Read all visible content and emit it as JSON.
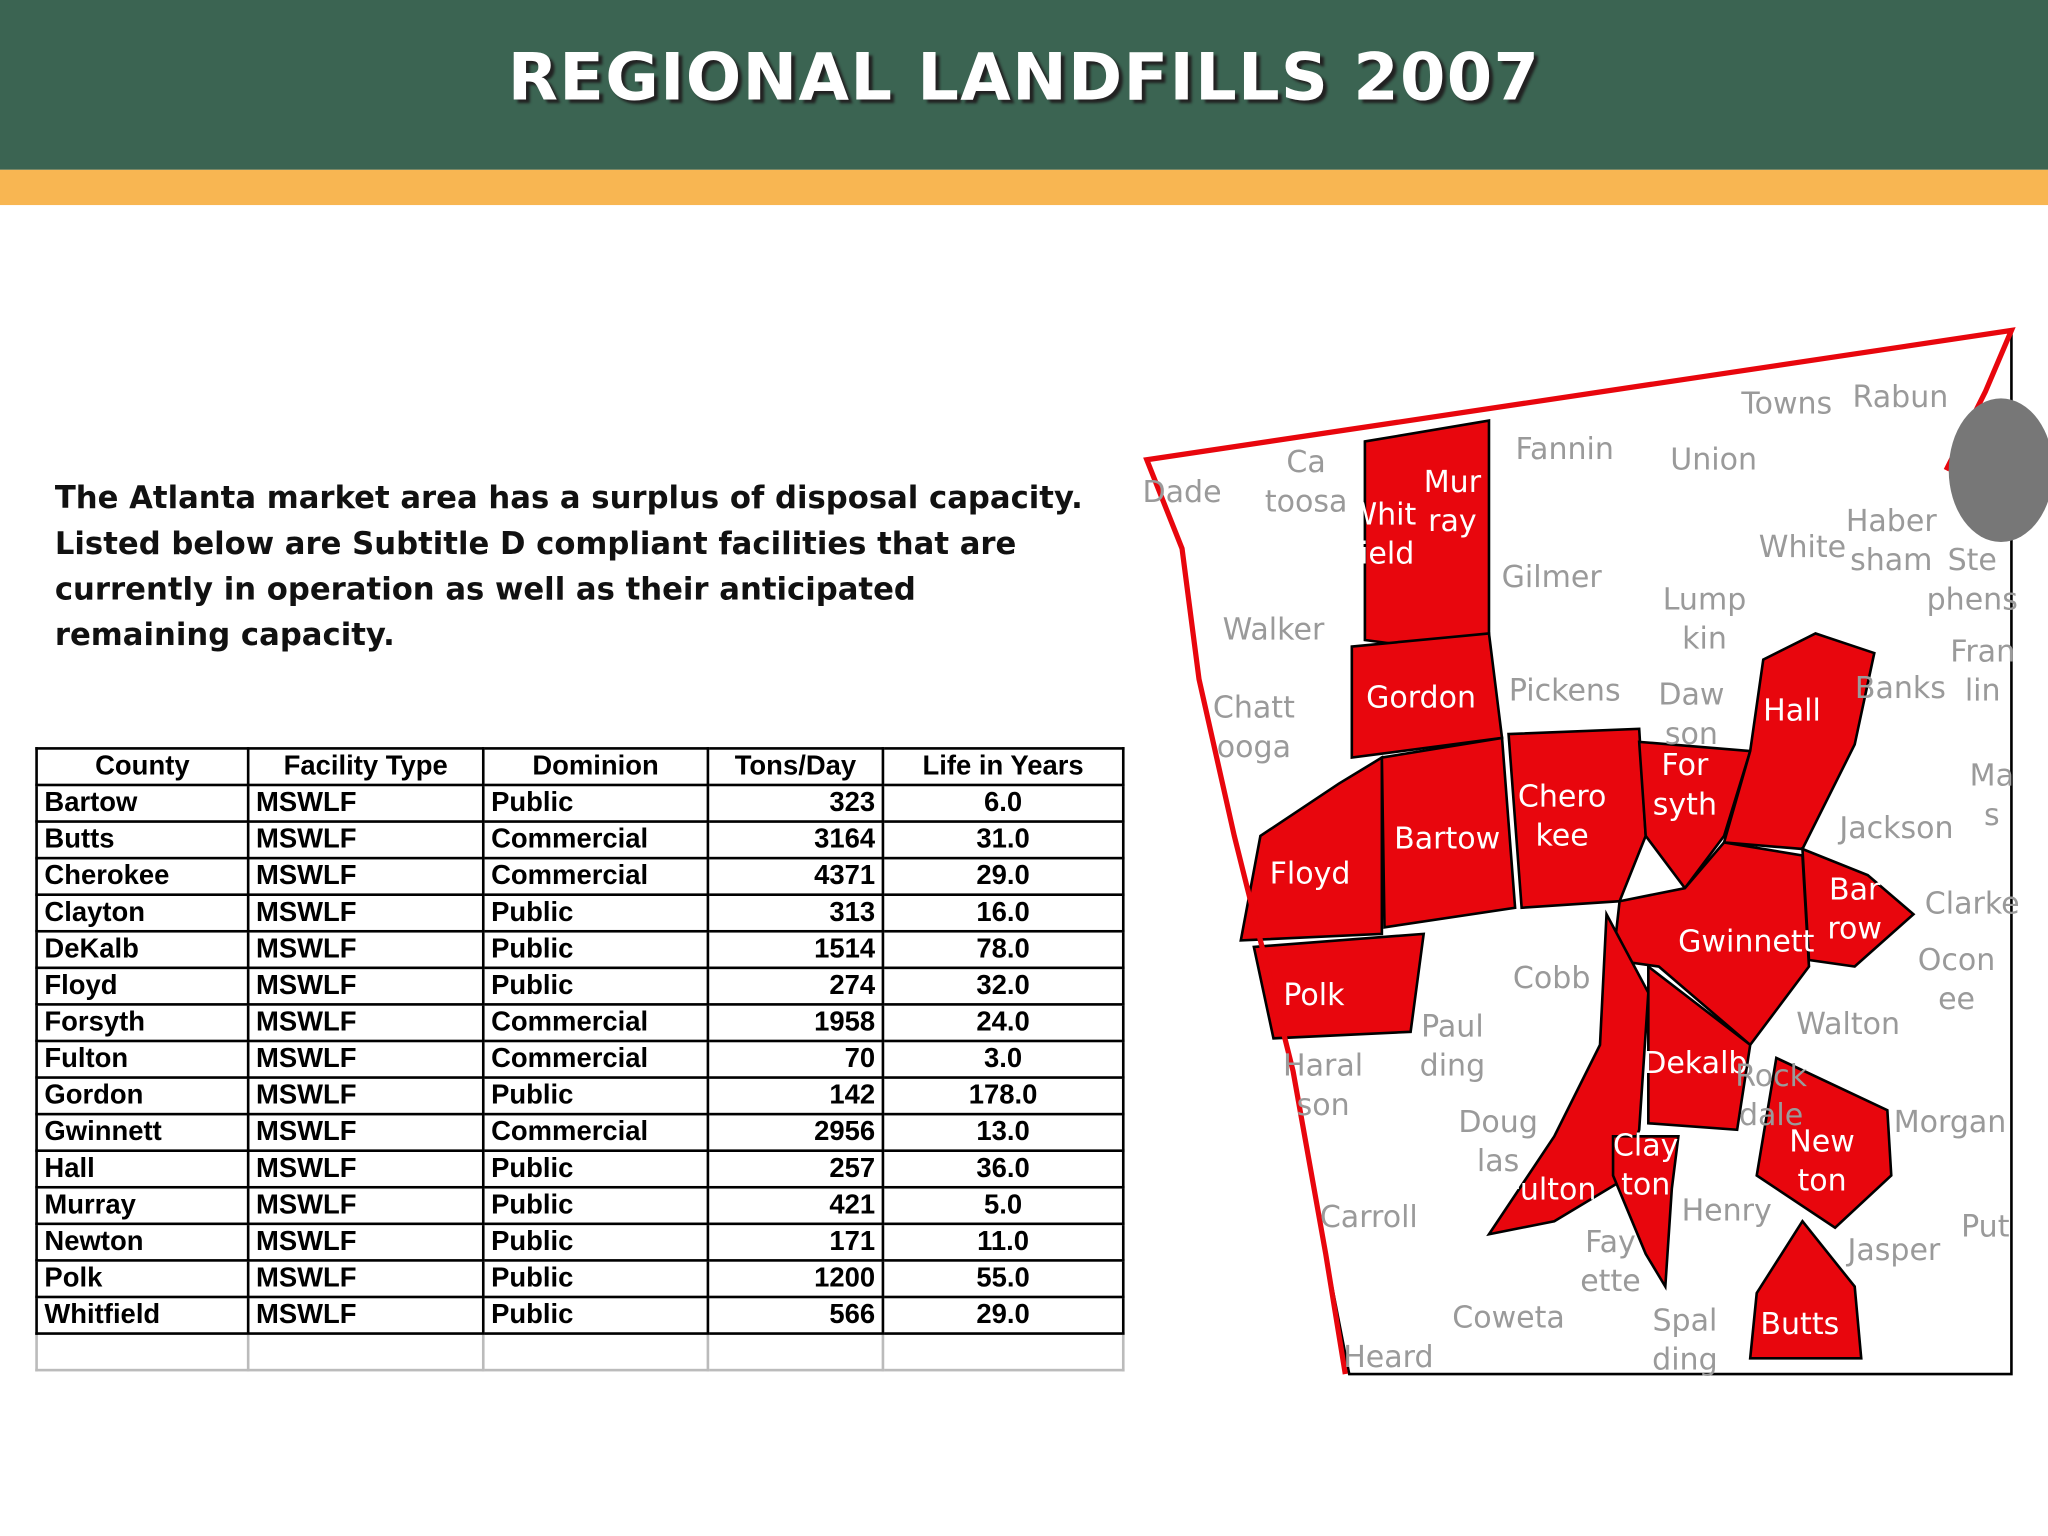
{
  "header": {
    "title": "REGIONAL LANDFILLS 2007"
  },
  "intro": "The Atlanta market area has a surplus of disposal capacity. Listed below are Subtitle D compliant facilities that are currently in operation as well as their anticipated remaining capacity.",
  "table": {
    "columns": [
      "County",
      "Facility Type",
      "Dominion",
      "Tons/Day",
      "Life in Years"
    ],
    "rows": [
      [
        "Bartow",
        "MSWLF",
        "Public",
        323,
        "6.0"
      ],
      [
        "Butts",
        "MSWLF",
        "Commercial",
        3164,
        "31.0"
      ],
      [
        "Cherokee",
        "MSWLF",
        "Commercial",
        4371,
        "29.0"
      ],
      [
        "Clayton",
        "MSWLF",
        "Public",
        313,
        "16.0"
      ],
      [
        "DeKalb",
        "MSWLF",
        "Public",
        1514,
        "78.0"
      ],
      [
        "Floyd",
        "MSWLF",
        "Public",
        274,
        "32.0"
      ],
      [
        "Forsyth",
        "MSWLF",
        "Commercial",
        1958,
        "24.0"
      ],
      [
        "Fulton",
        "MSWLF",
        "Commercial",
        70,
        "3.0"
      ],
      [
        "Gordon",
        "MSWLF",
        "Public",
        142,
        "178.0"
      ],
      [
        "Gwinnett",
        "MSWLF",
        "Commercial",
        2956,
        "13.0"
      ],
      [
        "Hall",
        "MSWLF",
        "Public",
        257,
        "36.0"
      ],
      [
        "Murray",
        "MSWLF",
        "Public",
        421,
        "5.0"
      ],
      [
        "Newton",
        "MSWLF",
        "Public",
        171,
        "11.0"
      ],
      [
        "Polk",
        "MSWLF",
        "Public",
        1200,
        "55.0"
      ],
      [
        "Whitfield",
        "MSWLF",
        "Public",
        566,
        "29.0"
      ]
    ]
  },
  "map": {
    "counties": [
      {
        "label": [
          "Dade"
        ],
        "highlighted": false
      },
      {
        "label": [
          "Ca",
          "toosa"
        ],
        "highlighted": false
      },
      {
        "label": [
          "Whit",
          "field"
        ],
        "highlighted": true
      },
      {
        "label": [
          "Mur",
          "ray"
        ],
        "highlighted": true
      },
      {
        "label": [
          "Fannin"
        ],
        "highlighted": false
      },
      {
        "label": [
          "Towns"
        ],
        "highlighted": false
      },
      {
        "label": [
          "Rabun"
        ],
        "highlighted": false
      },
      {
        "label": [
          "Union"
        ],
        "highlighted": false
      },
      {
        "label": [
          "Gilmer"
        ],
        "highlighted": false
      },
      {
        "label": [
          "White"
        ],
        "highlighted": false
      },
      {
        "label": [
          "Haber",
          "sham"
        ],
        "highlighted": false
      },
      {
        "label": [
          "Ste",
          "phens"
        ],
        "highlighted": false
      },
      {
        "label": [
          "Lump",
          "kin"
        ],
        "highlighted": false
      },
      {
        "label": [
          "Walker"
        ],
        "highlighted": false
      },
      {
        "label": [
          "Fran",
          "lin"
        ],
        "highlighted": false
      },
      {
        "label": [
          "Chatt",
          "ooga"
        ],
        "highlighted": false
      },
      {
        "label": [
          "Gordon"
        ],
        "highlighted": true
      },
      {
        "label": [
          "Pickens"
        ],
        "highlighted": false
      },
      {
        "label": [
          "Daw",
          "son"
        ],
        "highlighted": false
      },
      {
        "label": [
          "Hall"
        ],
        "highlighted": true
      },
      {
        "label": [
          "Banks"
        ],
        "highlighted": false
      },
      {
        "label": [
          "Ma",
          "s"
        ],
        "highlighted": false
      },
      {
        "label": [
          "Chero",
          "kee"
        ],
        "highlighted": true
      },
      {
        "label": [
          "For",
          "syth"
        ],
        "highlighted": true
      },
      {
        "label": [
          "Bartow"
        ],
        "highlighted": true
      },
      {
        "label": [
          "Jackson"
        ],
        "highlighted": false
      },
      {
        "label": [
          "Floyd"
        ],
        "highlighted": true
      },
      {
        "label": [
          "Bar",
          "row"
        ],
        "highlighted": true
      },
      {
        "label": [
          "Clarke"
        ],
        "highlighted": false
      },
      {
        "label": [
          "Gwinnett"
        ],
        "highlighted": true
      },
      {
        "label": [
          "Cobb"
        ],
        "highlighted": false
      },
      {
        "label": [
          "Ocon",
          "ee"
        ],
        "highlighted": false
      },
      {
        "label": [
          "Polk"
        ],
        "highlighted": true
      },
      {
        "label": [
          "Paul",
          "ding"
        ],
        "highlighted": false
      },
      {
        "label": [
          "Walton"
        ],
        "highlighted": false
      },
      {
        "label": [
          "Haral",
          "son"
        ],
        "highlighted": false
      },
      {
        "label": [
          "Dekalb"
        ],
        "highlighted": true
      },
      {
        "label": [
          "Rock",
          "dale"
        ],
        "highlighted": false
      },
      {
        "label": [
          "Morgan"
        ],
        "highlighted": false
      },
      {
        "label": [
          "Doug",
          "las"
        ],
        "highlighted": false
      },
      {
        "label": [
          "New",
          "ton"
        ],
        "highlighted": true
      },
      {
        "label": [
          "Clay",
          "ton"
        ],
        "highlighted": true
      },
      {
        "label": [
          "Fulton"
        ],
        "highlighted": true
      },
      {
        "label": [
          "Carroll"
        ],
        "highlighted": false
      },
      {
        "label": [
          "Henry"
        ],
        "highlighted": false
      },
      {
        "label": [
          "Put"
        ],
        "highlighted": false
      },
      {
        "label": [
          "Fay",
          "ette"
        ],
        "highlighted": false
      },
      {
        "label": [
          "Jasper"
        ],
        "highlighted": false
      },
      {
        "label": [
          "Coweta"
        ],
        "highlighted": false
      },
      {
        "label": [
          "Spal",
          "ding"
        ],
        "highlighted": false
      },
      {
        "label": [
          "Butts"
        ],
        "highlighted": true
      },
      {
        "label": [
          "Heard"
        ],
        "highlighted": false
      }
    ]
  }
}
